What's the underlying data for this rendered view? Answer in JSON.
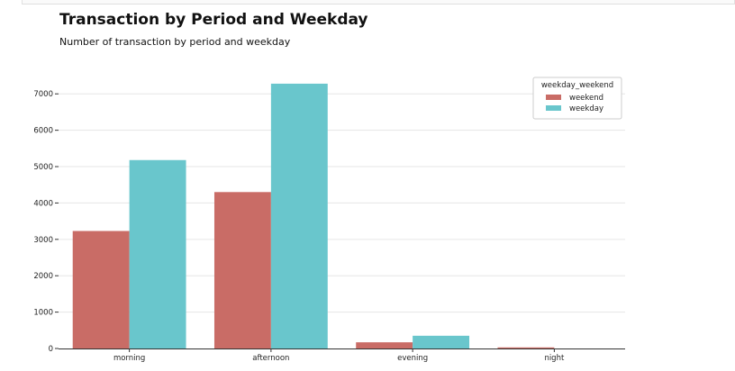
{
  "chart_data": {
    "type": "bar",
    "title": "Transaction by Period and Weekday",
    "subtitle": "Number of transaction by period and weekday",
    "xlabel": "",
    "ylabel": "",
    "categories": [
      "morning",
      "afternoon",
      "evening",
      "night"
    ],
    "series": [
      {
        "name": "weekend",
        "color": "#c96c66",
        "values": [
          3230,
          4300,
          170,
          30
        ]
      },
      {
        "name": "weekday",
        "color": "#69c6cc",
        "values": [
          5180,
          7280,
          350,
          0
        ]
      }
    ],
    "ylim": [
      0,
      7600
    ],
    "yticks": [
      0,
      1000,
      2000,
      3000,
      4000,
      5000,
      6000,
      7000
    ],
    "grid": true,
    "legend": {
      "title": "weekday_weekend",
      "placement": "top-right"
    }
  }
}
